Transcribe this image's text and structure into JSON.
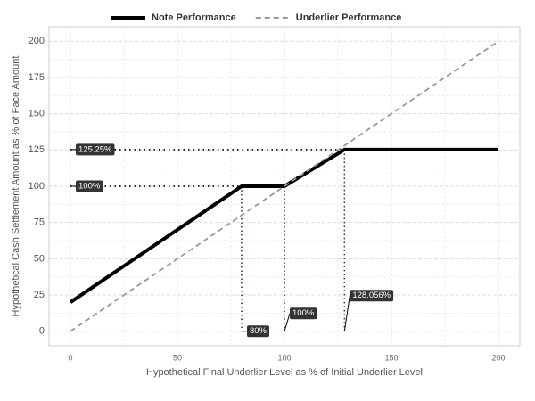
{
  "chart_data": {
    "type": "line",
    "xlabel": "Hypothetical Final Underlier Level as % of Initial Underlier Level",
    "ylabel": "Hypothetical Cash Settlement Amount as % of Face Amount",
    "xlim": [
      -10,
      210
    ],
    "ylim": [
      -10,
      210
    ],
    "xticks": [
      0,
      50,
      100,
      150,
      200
    ],
    "yticks": [
      0,
      25,
      50,
      75,
      100,
      125,
      150,
      175,
      200
    ],
    "minor_xticks": [
      25,
      75,
      125,
      175
    ],
    "minor_yticks": [
      12.5,
      37.5,
      62.5,
      87.5,
      112.5,
      137.5,
      162.5,
      187.5
    ],
    "grid": true,
    "legend": "top",
    "series": [
      {
        "name": "Note Performance",
        "color": "#000000",
        "style": "solid",
        "x": [
          0,
          80,
          100,
          128.056,
          200
        ],
        "values": [
          20,
          100,
          100,
          125.25,
          125.25
        ]
      },
      {
        "name": "Underlier Performance",
        "color": "#999999",
        "style": "dashed",
        "x": [
          0,
          200
        ],
        "values": [
          0,
          200
        ]
      }
    ],
    "y_annotations": [
      {
        "value": 125.25,
        "label": "125.25%"
      },
      {
        "value": 100,
        "label": "100%"
      }
    ],
    "x_annotations": [
      {
        "value": 80,
        "label": "80%"
      },
      {
        "value": 100,
        "label": "100%"
      },
      {
        "value": 128.056,
        "label": "128.056%"
      }
    ]
  }
}
